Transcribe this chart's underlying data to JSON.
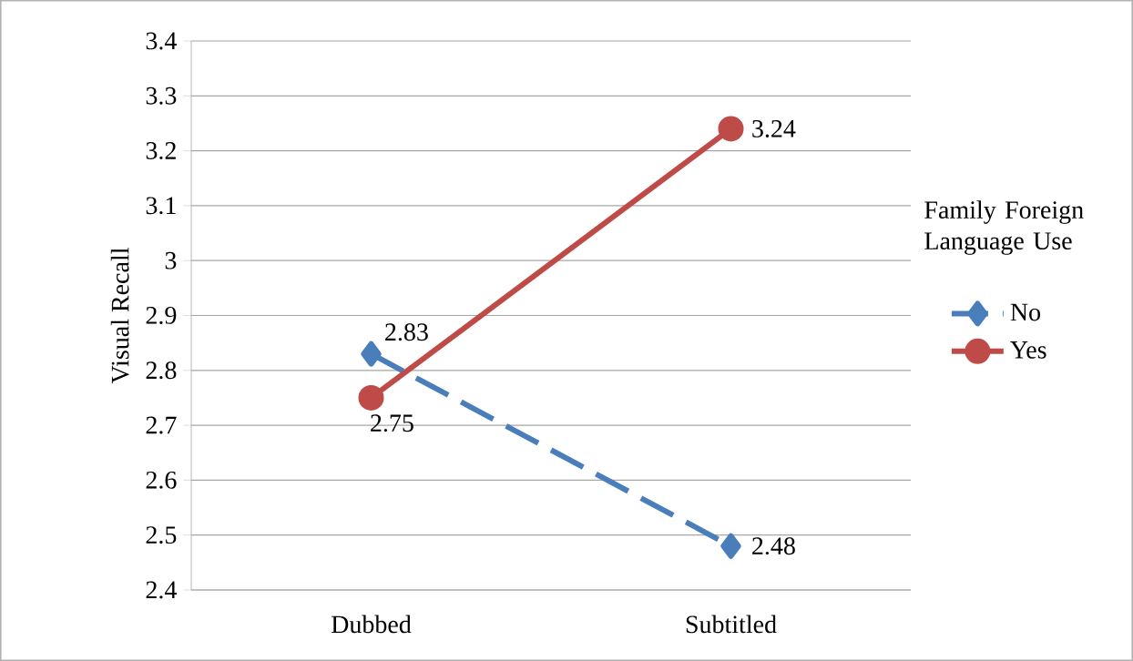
{
  "chart_data": {
    "type": "line",
    "ylabel": "Visual Recall",
    "legend_title": "Family Foreign Language Use",
    "categories": [
      "Dubbed",
      "Subtitled"
    ],
    "series": [
      {
        "name": "No",
        "color": "#4a7ebb",
        "values": [
          2.83,
          2.48
        ],
        "marker": "diamond",
        "line_style": "dashed"
      },
      {
        "name": "Yes",
        "color": "#be4b48",
        "values": [
          2.75,
          3.24
        ],
        "marker": "circle",
        "line_style": "solid"
      }
    ],
    "ylim": [
      2.4,
      3.4
    ],
    "yticks": [
      2.4,
      2.5,
      2.6,
      2.7,
      2.8,
      2.9,
      3,
      3.1,
      3.2,
      3.3,
      3.4
    ],
    "grid": "y",
    "legend": "right",
    "data_labels": true
  }
}
